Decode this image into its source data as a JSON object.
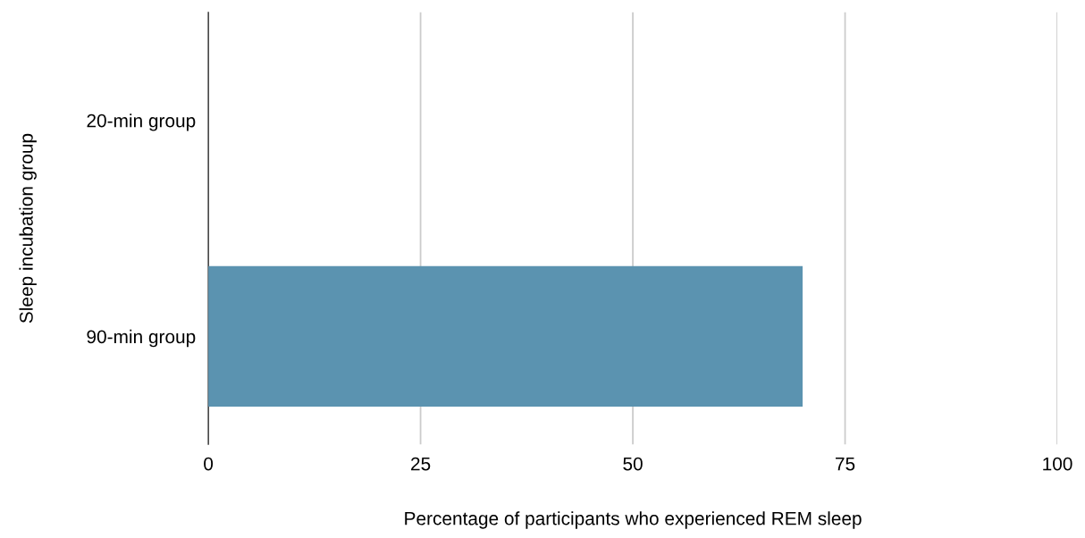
{
  "chart_data": {
    "type": "bar",
    "orientation": "horizontal",
    "categories": [
      "20-min group",
      "90-min group"
    ],
    "values": [
      0,
      70
    ],
    "color": "#5b93b0",
    "xlabel": "Percentage of participants who experienced REM sleep",
    "ylabel": "Sleep incubation group",
    "xlim": [
      0,
      100
    ],
    "xticks": [
      0,
      25,
      50,
      75,
      100
    ],
    "grid": "x",
    "legend": false
  }
}
